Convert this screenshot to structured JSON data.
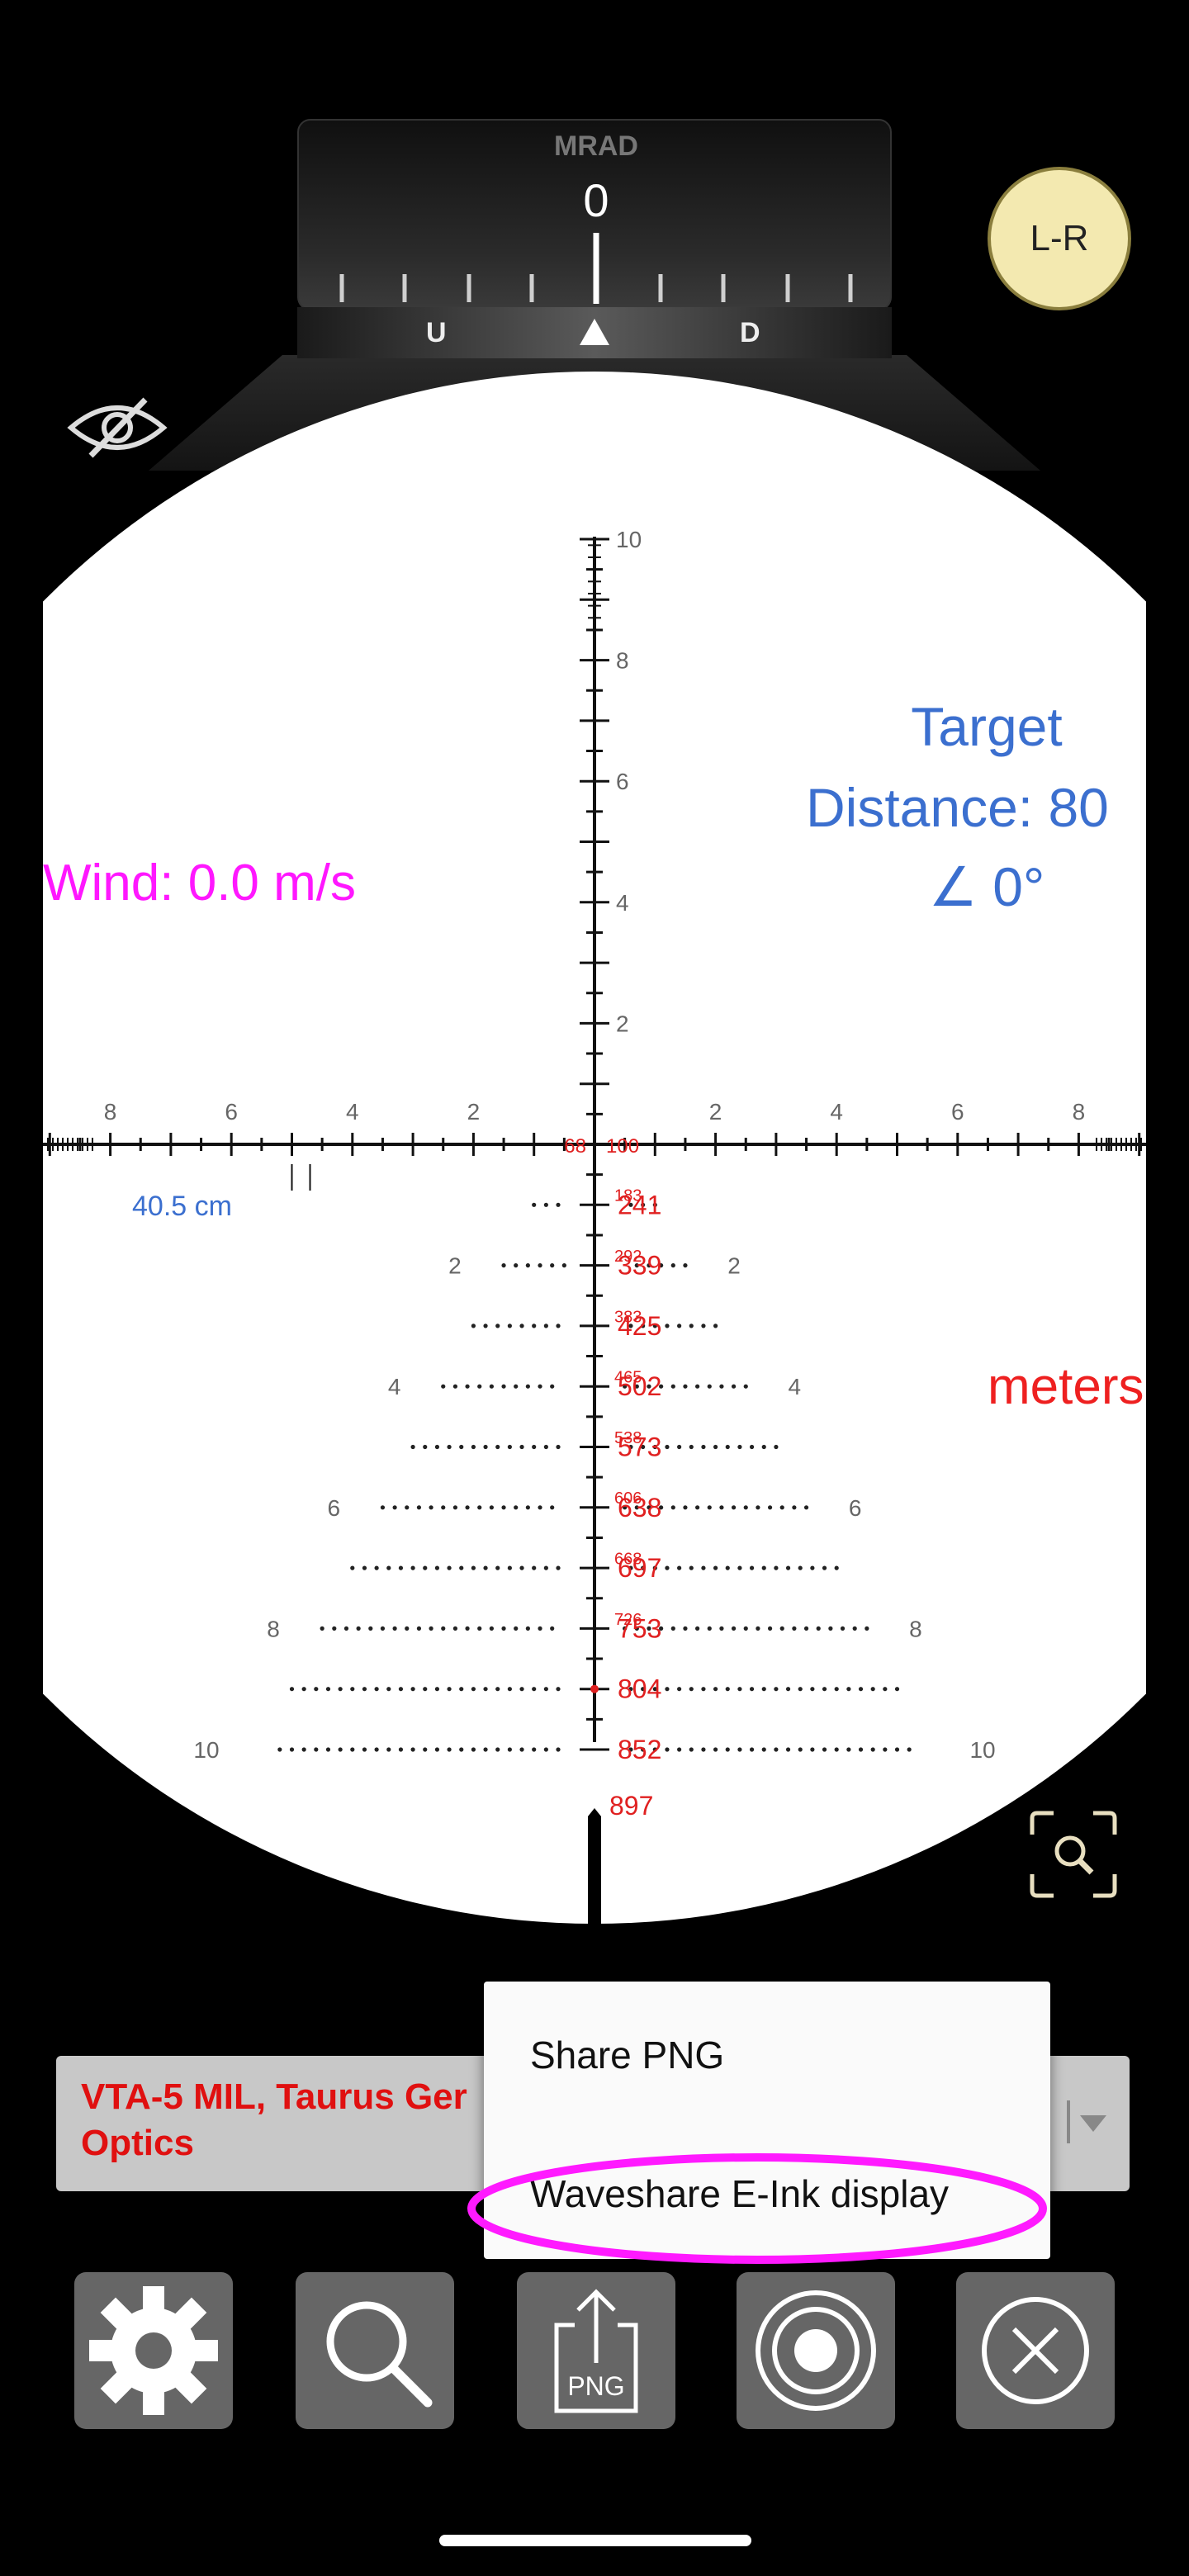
{
  "turret": {
    "unit": "MRAD",
    "value": "0",
    "up_label": "U",
    "down_label": "D"
  },
  "lr_button": {
    "label": "L-R"
  },
  "hide_icon": "eye-off-icon",
  "target": {
    "title": "Target",
    "distance": "Distance: 80",
    "angle": "∠ 0°"
  },
  "wind": {
    "text": "Wind: 0.0 m/s"
  },
  "units_label": "meters",
  "holdover_size": "40.5 cm",
  "reticle": {
    "vertical_ticks": [
      "10",
      "8",
      "6",
      "4",
      "2"
    ],
    "horizontal_ticks_left": [
      "8",
      "6",
      "4",
      "2"
    ],
    "horizontal_ticks_right": [
      "2",
      "4",
      "6",
      "8"
    ],
    "center_left_range": "68",
    "center_right_range": "100",
    "row_ranges": [
      "241",
      "339",
      "425",
      "502",
      "573",
      "638",
      "697",
      "753",
      "804",
      "852"
    ],
    "sub_ranges": [
      "183",
      "292",
      "383",
      "465",
      "538",
      "606",
      "668",
      "726"
    ],
    "row_side_labels": [
      "2",
      "4",
      "6",
      "8",
      "10"
    ],
    "post_range": "897",
    "color_ranges": "#e02020",
    "color_ticks": "#111111"
  },
  "scope_select": {
    "value": "VTA-5 MIL, Taurus Ger Optics"
  },
  "popup_menu": {
    "items": [
      "Share PNG",
      "Waveshare E-Ink display"
    ],
    "highlight_color": "#ff1aff"
  },
  "toolbar": {
    "buttons": [
      {
        "icon": "gear-icon"
      },
      {
        "icon": "search-icon"
      },
      {
        "icon": "export-png-icon",
        "label": "PNG"
      },
      {
        "icon": "target-icon"
      },
      {
        "icon": "close-circle-icon"
      }
    ]
  }
}
